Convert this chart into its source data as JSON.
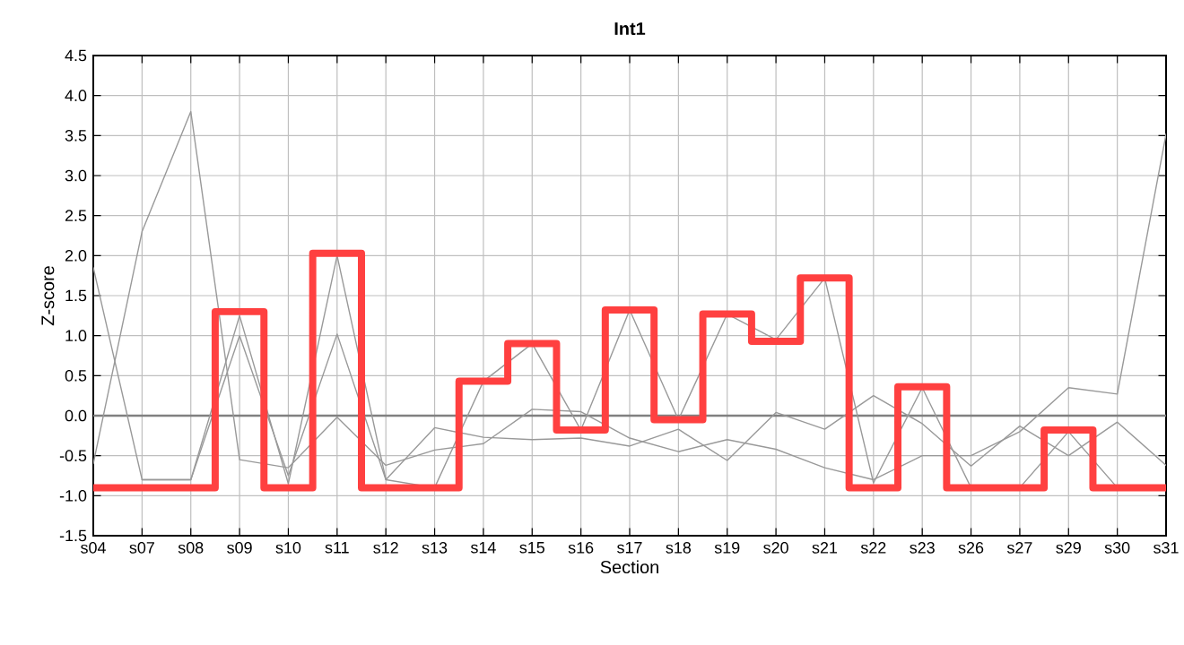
{
  "chart_data": {
    "type": "line",
    "title": "Int1",
    "xlabel": "Section",
    "ylabel": "Z-score",
    "categories": [
      "s04",
      "s07",
      "s08",
      "s09",
      "s10",
      "s11",
      "s12",
      "s13",
      "s14",
      "s15",
      "s16",
      "s17",
      "s18",
      "s19",
      "s20",
      "s21",
      "s22",
      "s23",
      "s26",
      "s27",
      "s29",
      "s30",
      "s31"
    ],
    "ylim": [
      -1.5,
      4.5
    ],
    "yticks": [
      {
        "value": -1.5,
        "label": "-1.5"
      },
      {
        "value": -1,
        "label": "-1.0"
      },
      {
        "value": -0.5,
        "label": "-0.5"
      },
      {
        "value": 0,
        "label": "0.0"
      },
      {
        "value": 0.5,
        "label": "0.5"
      },
      {
        "value": 1,
        "label": "1.0"
      },
      {
        "value": 1.5,
        "label": "1.5"
      },
      {
        "value": 2,
        "label": "2.0"
      },
      {
        "value": 2.5,
        "label": "2.5"
      },
      {
        "value": 3,
        "label": "3.0"
      },
      {
        "value": 3.5,
        "label": "3.5"
      },
      {
        "value": 4,
        "label": "4.0"
      },
      {
        "value": 4.5,
        "label": "4.5"
      }
    ],
    "grid": true,
    "marker": "none",
    "line_style": "solid",
    "ref_lines": [
      {
        "axis": "y",
        "value": 0,
        "color": "#808080"
      }
    ],
    "series": [
      {
        "color": "#999999",
        "values": [
          -0.6,
          2.3,
          3.8,
          -0.55,
          -0.65,
          -0.02,
          -0.62,
          -0.43,
          -0.35,
          0.08,
          0.05,
          -0.28,
          -0.45,
          -0.3,
          -0.42,
          -0.65,
          -0.8,
          -0.5,
          -0.5,
          -0.2,
          0.35,
          0.27,
          3.52
        ]
      },
      {
        "color": "#999999",
        "values": [
          1.85,
          -0.8,
          -0.8,
          1.25,
          -0.85,
          2.0,
          -0.8,
          -0.9,
          0.43,
          0.9,
          -0.18,
          1.32,
          -0.05,
          1.27,
          0.95,
          1.72,
          -0.84,
          0.35,
          -0.9,
          -0.9,
          -0.2,
          -0.9,
          null
        ]
      },
      {
        "color": "#999999",
        "values": [
          null,
          -0.8,
          -0.8,
          1.0,
          -0.75,
          1.02,
          -0.8,
          -0.15,
          -0.27,
          -0.3,
          -0.28,
          -0.38,
          -0.17,
          -0.56,
          0.04,
          -0.17,
          0.25,
          -0.1,
          -0.63,
          -0.13,
          -0.5,
          -0.08,
          -0.62
        ]
      },
      {
        "type": "step",
        "color": "#ff4040",
        "values": [
          -0.9,
          -0.9,
          -0.9,
          1.3,
          -0.9,
          2.03,
          -0.9,
          -0.9,
          0.43,
          0.9,
          -0.18,
          1.32,
          -0.05,
          1.27,
          0.93,
          1.72,
          -0.9,
          0.36,
          -0.9,
          -0.9,
          -0.18,
          -0.9,
          -0.9
        ]
      }
    ]
  }
}
